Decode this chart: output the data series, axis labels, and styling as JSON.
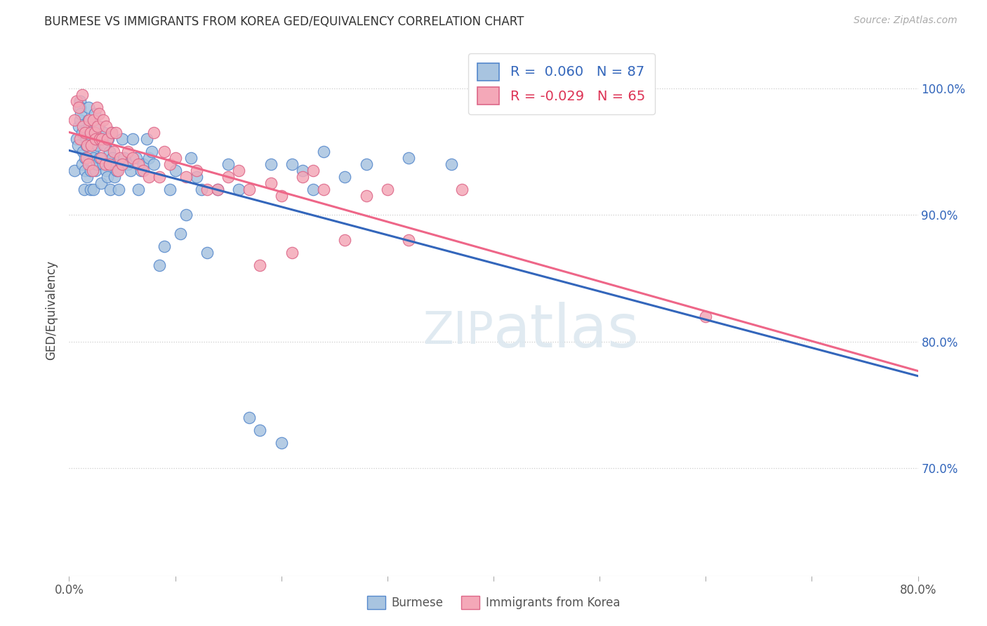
{
  "title": "BURMESE VS IMMIGRANTS FROM KOREA GED/EQUIVALENCY CORRELATION CHART",
  "source": "Source: ZipAtlas.com",
  "ylabel": "GED/Equivalency",
  "xlim": [
    0.0,
    0.8
  ],
  "ylim": [
    0.615,
    1.035
  ],
  "xtick_positions": [
    0.0,
    0.1,
    0.2,
    0.3,
    0.4,
    0.5,
    0.6,
    0.7,
    0.8
  ],
  "xtick_labels": [
    "0.0%",
    "",
    "",
    "",
    "",
    "",
    "",
    "",
    "80.0%"
  ],
  "ytick_positions": [
    0.7,
    0.8,
    0.9,
    1.0
  ],
  "ytick_labels": [
    "70.0%",
    "80.0%",
    "90.0%",
    "100.0%"
  ],
  "legend_line1": "R =  0.060   N = 87",
  "legend_line2": "R = -0.029   N = 65",
  "burmese_color": "#a8c4e0",
  "korea_color": "#f4a8b8",
  "burmese_edge": "#5588cc",
  "korea_edge": "#dd6688",
  "burmese_line_color": "#3366bb",
  "korea_line_color": "#ee6688",
  "legend_text1_color": "#3366bb",
  "legend_text2_color": "#dd3355",
  "bg_color": "#ffffff",
  "grid_color": "#cccccc",
  "watermark_color": "#dde8f0",
  "burmese_x": [
    0.005,
    0.007,
    0.008,
    0.009,
    0.01,
    0.01,
    0.01,
    0.011,
    0.012,
    0.012,
    0.013,
    0.014,
    0.015,
    0.015,
    0.016,
    0.016,
    0.017,
    0.018,
    0.018,
    0.019,
    0.02,
    0.02,
    0.021,
    0.022,
    0.023,
    0.023,
    0.024,
    0.025,
    0.025,
    0.026,
    0.027,
    0.028,
    0.029,
    0.03,
    0.031,
    0.032,
    0.033,
    0.034,
    0.035,
    0.036,
    0.037,
    0.038,
    0.039,
    0.04,
    0.041,
    0.042,
    0.043,
    0.045,
    0.047,
    0.05,
    0.052,
    0.055,
    0.058,
    0.06,
    0.063,
    0.065,
    0.068,
    0.07,
    0.073,
    0.075,
    0.078,
    0.08,
    0.085,
    0.09,
    0.095,
    0.1,
    0.105,
    0.11,
    0.115,
    0.12,
    0.125,
    0.13,
    0.14,
    0.15,
    0.16,
    0.17,
    0.18,
    0.19,
    0.2,
    0.21,
    0.22,
    0.23,
    0.24,
    0.26,
    0.28,
    0.32,
    0.36
  ],
  "burmese_y": [
    0.935,
    0.96,
    0.955,
    0.97,
    0.975,
    0.99,
    0.985,
    0.98,
    0.965,
    0.94,
    0.95,
    0.92,
    0.935,
    0.945,
    0.96,
    0.955,
    0.93,
    0.975,
    0.985,
    0.97,
    0.92,
    0.935,
    0.965,
    0.95,
    0.945,
    0.92,
    0.98,
    0.96,
    0.935,
    0.94,
    0.955,
    0.97,
    0.945,
    0.925,
    0.96,
    0.94,
    0.965,
    0.955,
    0.935,
    0.93,
    0.96,
    0.95,
    0.92,
    0.965,
    0.945,
    0.94,
    0.93,
    0.935,
    0.92,
    0.96,
    0.945,
    0.94,
    0.935,
    0.96,
    0.945,
    0.92,
    0.935,
    0.94,
    0.96,
    0.945,
    0.95,
    0.94,
    0.86,
    0.875,
    0.92,
    0.935,
    0.885,
    0.9,
    0.945,
    0.93,
    0.92,
    0.87,
    0.92,
    0.94,
    0.92,
    0.74,
    0.73,
    0.94,
    0.72,
    0.94,
    0.935,
    0.92,
    0.95,
    0.93,
    0.94,
    0.945,
    0.94
  ],
  "korea_x": [
    0.005,
    0.007,
    0.009,
    0.01,
    0.012,
    0.013,
    0.015,
    0.016,
    0.017,
    0.018,
    0.019,
    0.02,
    0.021,
    0.022,
    0.023,
    0.024,
    0.025,
    0.026,
    0.027,
    0.028,
    0.029,
    0.03,
    0.031,
    0.032,
    0.033,
    0.034,
    0.035,
    0.036,
    0.038,
    0.04,
    0.042,
    0.044,
    0.046,
    0.048,
    0.05,
    0.055,
    0.06,
    0.065,
    0.07,
    0.075,
    0.08,
    0.085,
    0.09,
    0.095,
    0.1,
    0.11,
    0.12,
    0.13,
    0.14,
    0.15,
    0.16,
    0.17,
    0.18,
    0.19,
    0.2,
    0.21,
    0.22,
    0.23,
    0.24,
    0.26,
    0.28,
    0.3,
    0.32,
    0.37,
    0.6
  ],
  "korea_y": [
    0.975,
    0.99,
    0.985,
    0.96,
    0.995,
    0.97,
    0.965,
    0.945,
    0.955,
    0.94,
    0.975,
    0.965,
    0.955,
    0.935,
    0.975,
    0.965,
    0.96,
    0.985,
    0.97,
    0.98,
    0.96,
    0.945,
    0.96,
    0.975,
    0.955,
    0.94,
    0.97,
    0.96,
    0.94,
    0.965,
    0.95,
    0.965,
    0.935,
    0.945,
    0.94,
    0.95,
    0.945,
    0.94,
    0.935,
    0.93,
    0.965,
    0.93,
    0.95,
    0.94,
    0.945,
    0.93,
    0.935,
    0.92,
    0.92,
    0.93,
    0.935,
    0.92,
    0.86,
    0.925,
    0.915,
    0.87,
    0.93,
    0.935,
    0.92,
    0.88,
    0.915,
    0.92,
    0.88,
    0.92,
    0.82
  ]
}
